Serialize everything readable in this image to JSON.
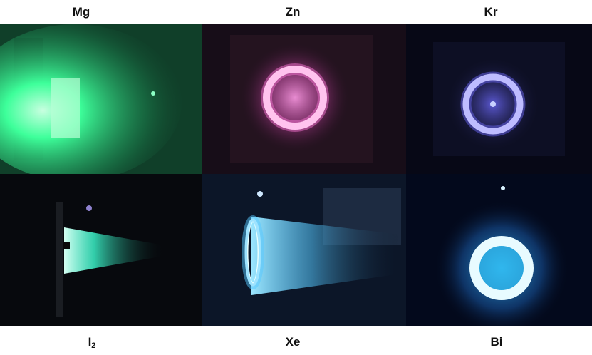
{
  "panels": [
    {
      "label": "Mg",
      "color": "#3dff9a"
    },
    {
      "label": "Zn",
      "color": "#ff7ad9"
    },
    {
      "label": "Kr",
      "color": "#6f6bff"
    },
    {
      "label": "I",
      "subscript": "2",
      "color": "#3dffd2"
    },
    {
      "label": "Xe",
      "color": "#55c8ff"
    },
    {
      "label": "Bi",
      "color": "#39c6ff"
    }
  ]
}
